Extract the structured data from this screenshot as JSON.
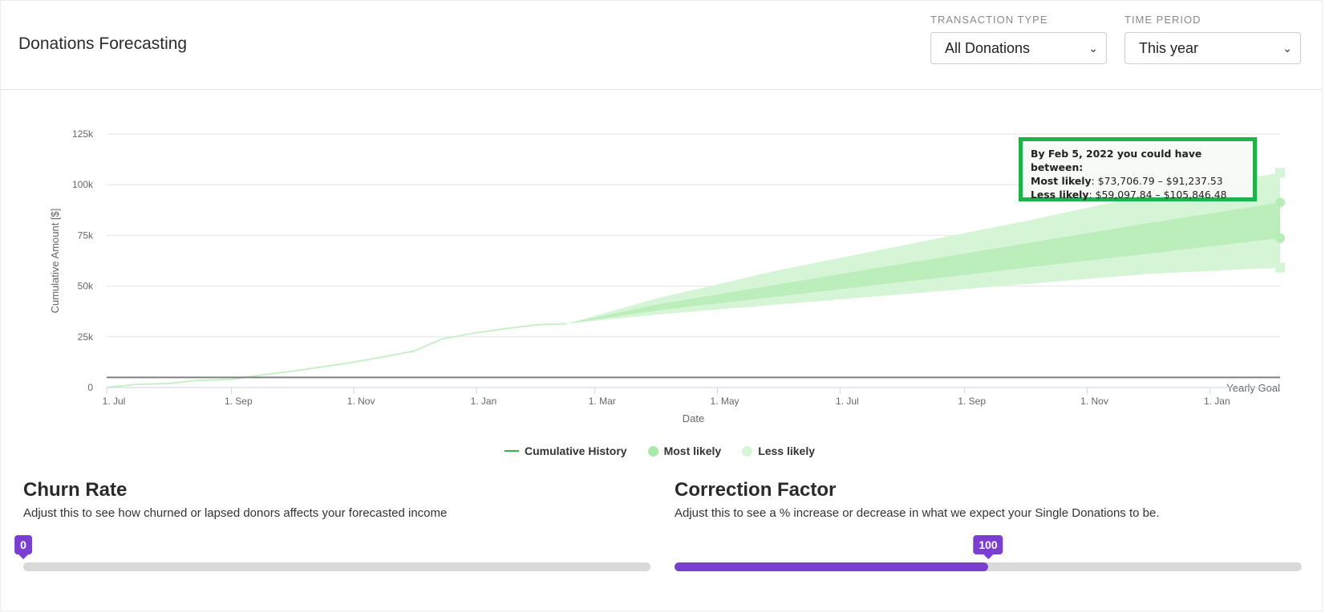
{
  "header": {
    "title": "Donations Forecasting",
    "transaction_type": {
      "label": "TRANSACTION TYPE",
      "value": "All Donations"
    },
    "time_period": {
      "label": "TIME PERIOD",
      "value": "This year"
    }
  },
  "tooltip": {
    "heading": "By Feb 5, 2022 you could have between:",
    "most_likely_label": "Most likely",
    "most_likely_range": "$73,706.79 – $91,237.53",
    "less_likely_label": "Less likely",
    "less_likely_range": "$59,097.84 – $105,846.48"
  },
  "legend": {
    "cumulative": "Cumulative History",
    "most_likely": "Most likely",
    "less_likely": "Less likely"
  },
  "churn": {
    "title": "Churn Rate",
    "description": "Adjust this to see how churned or lapsed donors affects your forecasted income",
    "value": "0",
    "fraction": 0
  },
  "correction": {
    "title": "Correction Factor",
    "description": "Adjust this to see a % increase or decrease in what we expect your Single Donations to be.",
    "value": "100",
    "fraction": 0.5
  },
  "colors": {
    "accent": "#7a3fd1",
    "history_line": "#2db84f",
    "most_likely": "#a8e8a8",
    "less_likely": "#d6f5d6",
    "tooltip_border": "#1fb24a"
  },
  "chart_data": {
    "type": "area",
    "xlabel": "Date",
    "ylabel": "Cumulative Amount [$]",
    "ylim": [
      0,
      125000
    ],
    "y_ticks": [
      0,
      25000,
      50000,
      75000,
      100000,
      125000
    ],
    "y_tick_labels": [
      "0",
      "25k",
      "50k",
      "75k",
      "100k",
      "125k"
    ],
    "x_ticks": [
      "2020-07-01",
      "2020-09-01",
      "2020-11-01",
      "2021-01-01",
      "2021-03-01",
      "2021-05-01",
      "2021-07-01",
      "2021-09-01",
      "2021-11-01",
      "2022-01-01"
    ],
    "x_tick_labels": [
      "1. Jul",
      "1. Sep",
      "1. Nov",
      "1. Jan",
      "1. Mar",
      "1. May",
      "1. Jul",
      "1. Sep",
      "1. Nov",
      "1. Jan"
    ],
    "xlim": [
      "2020-07-01",
      "2022-02-05"
    ],
    "yearly_goal": {
      "label": "Yearly Goal",
      "value": 5000
    },
    "history": {
      "name": "Cumulative History",
      "x": [
        "2020-07-01",
        "2020-07-15",
        "2020-08-01",
        "2020-08-15",
        "2020-09-01",
        "2020-09-15",
        "2020-10-01",
        "2020-10-15",
        "2020-11-01",
        "2020-11-15",
        "2020-12-01",
        "2020-12-15",
        "2021-01-01",
        "2021-01-15",
        "2021-02-01",
        "2021-02-15"
      ],
      "y": [
        0,
        1500,
        2000,
        3500,
        4000,
        6000,
        8000,
        10000,
        12500,
        15000,
        18000,
        24000,
        27000,
        29000,
        31000,
        31500
      ]
    },
    "forecast": {
      "x": [
        "2021-02-15",
        "2021-04-01",
        "2021-06-01",
        "2021-08-01",
        "2021-10-01",
        "2021-12-01",
        "2022-02-05"
      ],
      "less_likely": {
        "name": "Less likely",
        "low": [
          31500,
          36000,
          41000,
          46000,
          51000,
          56000,
          59097.84
        ],
        "high": [
          31500,
          44000,
          58000,
          70000,
          82000,
          95000,
          105846.48
        ]
      },
      "most_likely": {
        "name": "Most likely",
        "low": [
          31500,
          38000,
          45000,
          52000,
          59000,
          66000,
          73706.79
        ],
        "high": [
          31500,
          41000,
          51000,
          61000,
          71000,
          81000,
          91237.53
        ]
      }
    },
    "grid": true,
    "legend_position": "bottom-center"
  }
}
